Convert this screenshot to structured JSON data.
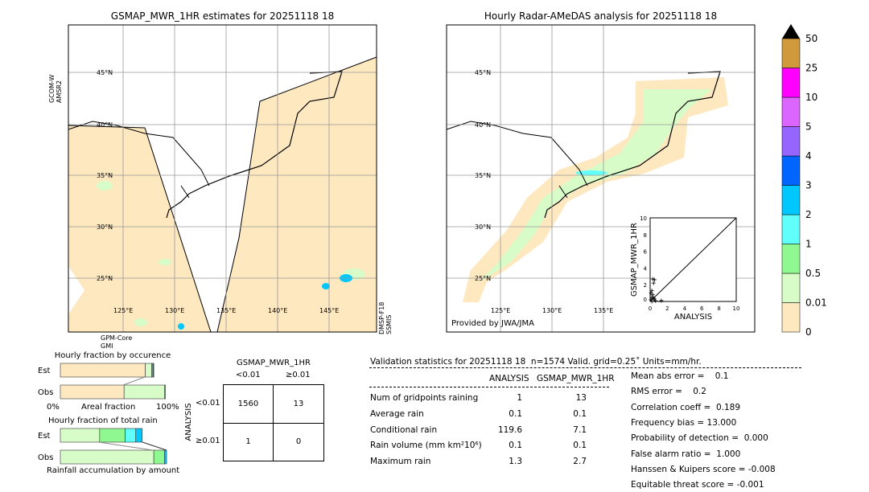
{
  "left_map": {
    "title": "GSMAP_MWR_1HR estimates for 20251118 18",
    "sensor_left": "GCOM-W\nAMSR2",
    "sensor_bottom": "GPM-Core\nGMI",
    "sensor_right": "DMSP-F18\nSSMIS",
    "lat_labels": [
      "45°N",
      "40°N",
      "35°N",
      "30°N",
      "25°N"
    ],
    "lon_labels": [
      "125°E",
      "130°E",
      "135°E",
      "140°E",
      "145°E"
    ]
  },
  "right_map": {
    "title": "Hourly Radar-AMeDAS analysis for 20251118 18",
    "credit": "Provided by JWA/JMA",
    "lat_labels": [
      "45°N",
      "40°N",
      "35°N",
      "30°N",
      "25°N"
    ],
    "lon_labels": [
      "125°E",
      "130°E",
      "135°E"
    ]
  },
  "colorbar": {
    "labels": [
      "0",
      "0.01",
      "0.5",
      "1",
      "2",
      "3",
      "4",
      "5",
      "10",
      "25",
      "50"
    ],
    "colors": [
      "#fee8c0",
      "#d8fcc8",
      "#90f890",
      "#60fffa",
      "#00c8ff",
      "#0064ff",
      "#9664ff",
      "#dc64ff",
      "#ff00ff",
      "#d09a3c"
    ],
    "extend_color": "#000000"
  },
  "chart_data": {
    "type": "scatter",
    "xlabel": "ANALYSIS",
    "ylabel": "GSMAP_MWR_1HR",
    "xlim": [
      0,
      10
    ],
    "ylim": [
      0,
      10
    ],
    "ticks": [
      "0",
      "2",
      "4",
      "6",
      "8",
      "10"
    ],
    "points": [
      [
        0.3,
        2.7
      ],
      [
        0.5,
        2.6
      ],
      [
        0.4,
        2.2
      ],
      [
        0.2,
        1.3
      ],
      [
        0.1,
        1.0
      ],
      [
        0.3,
        0.8
      ],
      [
        0.2,
        0.5
      ],
      [
        0.4,
        0.4
      ],
      [
        0.1,
        0.2
      ],
      [
        0.6,
        0.1
      ],
      [
        0.2,
        0.0
      ],
      [
        0.5,
        0.3
      ],
      [
        1.3,
        0.1
      ]
    ]
  },
  "occurrence": {
    "title": "Hourly fraction by occurence",
    "rows": [
      "Est",
      "Obs"
    ],
    "xmin": "0%",
    "xlabel": "Areal fraction",
    "xmax": "100%",
    "est": [
      0.8,
      0.06,
      0.01,
      0.006,
      0.004
    ],
    "obs": [
      0.6,
      0.38,
      0.01
    ]
  },
  "total_rain": {
    "title": "Hourly fraction of total rain",
    "rows": [
      "Est",
      "Obs"
    ],
    "xlabel": "Rainfall accumulation by amount",
    "est": [
      0.37,
      0.24,
      0.1,
      0.06
    ],
    "obs": [
      0.88,
      0.1,
      0.02
    ]
  },
  "contingency": {
    "title": "GSMAP_MWR_1HR",
    "cols": [
      "<0.01",
      "≥0.01"
    ],
    "ylabel": "ANALYSIS",
    "rows": [
      "<0.01",
      "≥0.01"
    ],
    "cells": [
      [
        "1560",
        "13"
      ],
      [
        "1",
        "0"
      ]
    ]
  },
  "stats": {
    "header": "Validation statistics for 20251118 18  n=1574 Valid. grid=0.25˚ Units=mm/hr.",
    "cols": [
      "ANALYSIS",
      "GSMAP_MWR_1HR"
    ],
    "rows": [
      {
        "label": "Num of gridpoints raining",
        "a": "1",
        "b": "13"
      },
      {
        "label": "Average rain",
        "a": "0.1",
        "b": "0.1"
      },
      {
        "label": "Conditional rain",
        "a": "119.6",
        "b": "7.1"
      },
      {
        "label": "Rain volume (mm km²10⁶)",
        "a": "0.1",
        "b": "0.1"
      },
      {
        "label": "Maximum rain",
        "a": "1.3",
        "b": "2.7"
      }
    ],
    "scores": [
      "Mean abs error =    0.1",
      "RMS error =    0.2",
      "Correlation coeff =  0.189",
      "Frequency bias = 13.000",
      "Probability of detection =  0.000",
      "False alarm ratio =  1.000",
      "Hanssen & Kuipers score = -0.008",
      "Equitable threat score = -0.001"
    ]
  }
}
